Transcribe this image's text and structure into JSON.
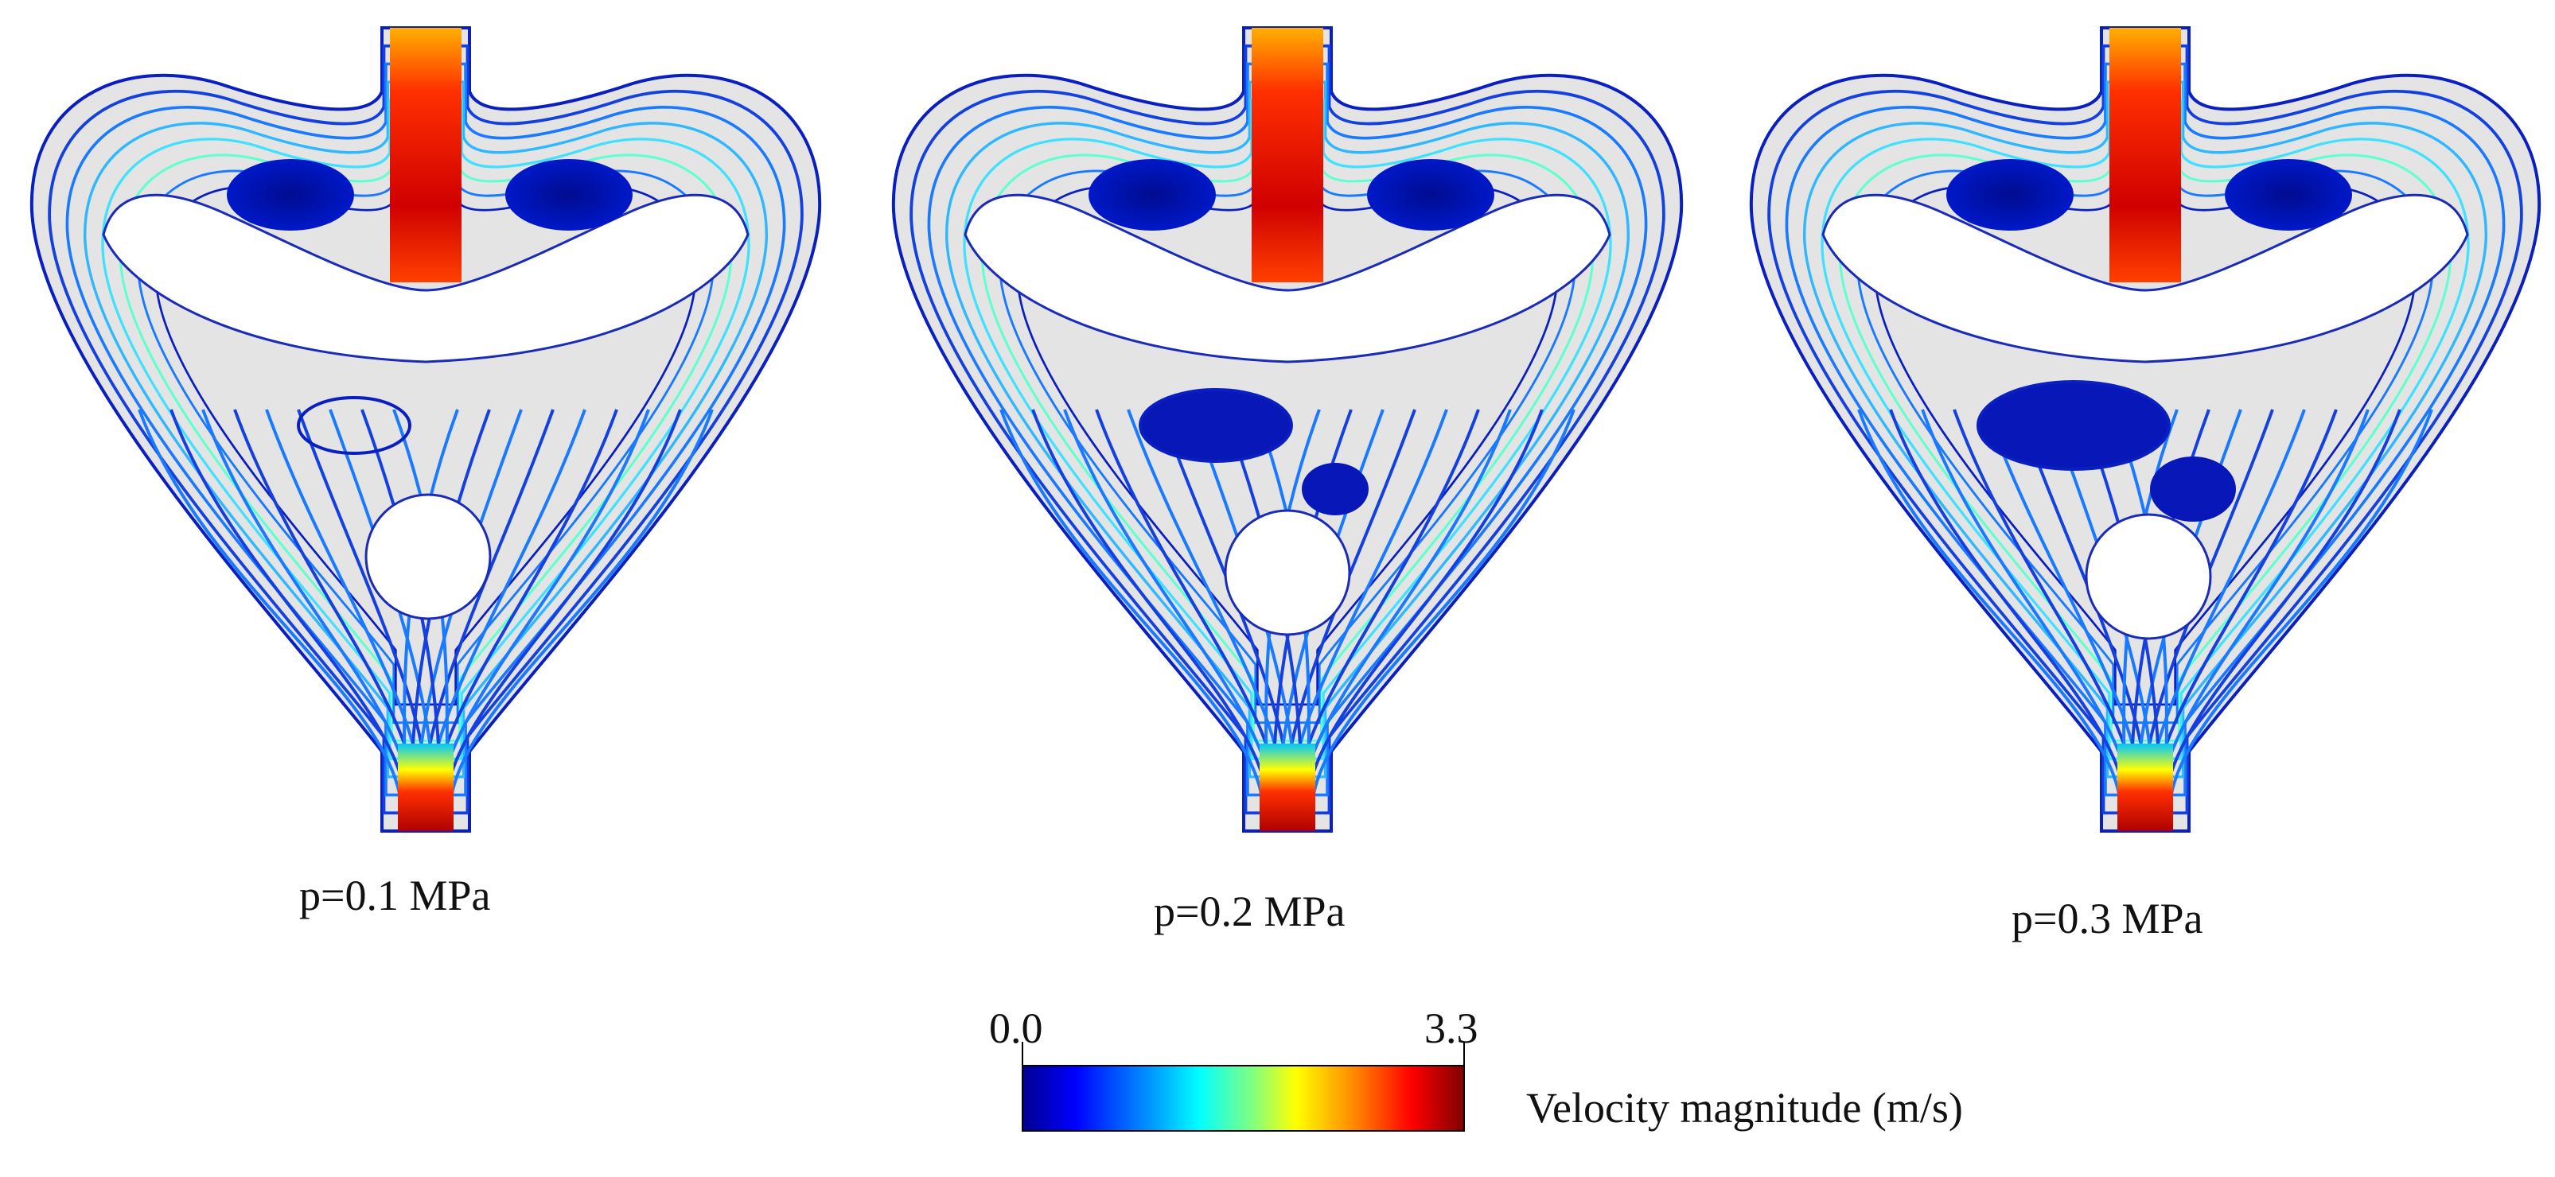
{
  "panels": [
    {
      "caption": "p=0.1 MPa"
    },
    {
      "caption": "p=0.2 MPa"
    },
    {
      "caption": "p=0.3 MPa"
    }
  ],
  "colorbar": {
    "min_label": "0.0",
    "max_label": "3.3",
    "title": "Velocity magnitude (m/s)",
    "min_value": 0.0,
    "max_value": 3.3,
    "colormap": "jet",
    "stops": [
      "#00008f",
      "#0000ff",
      "#00a0ff",
      "#00ffff",
      "#80ff80",
      "#ffff00",
      "#ff8000",
      "#ff0000",
      "#800000"
    ]
  },
  "colors": {
    "fluid_domain": "#e4e4e4",
    "low_speed": "#0a1fc0",
    "background": "#ffffff"
  }
}
